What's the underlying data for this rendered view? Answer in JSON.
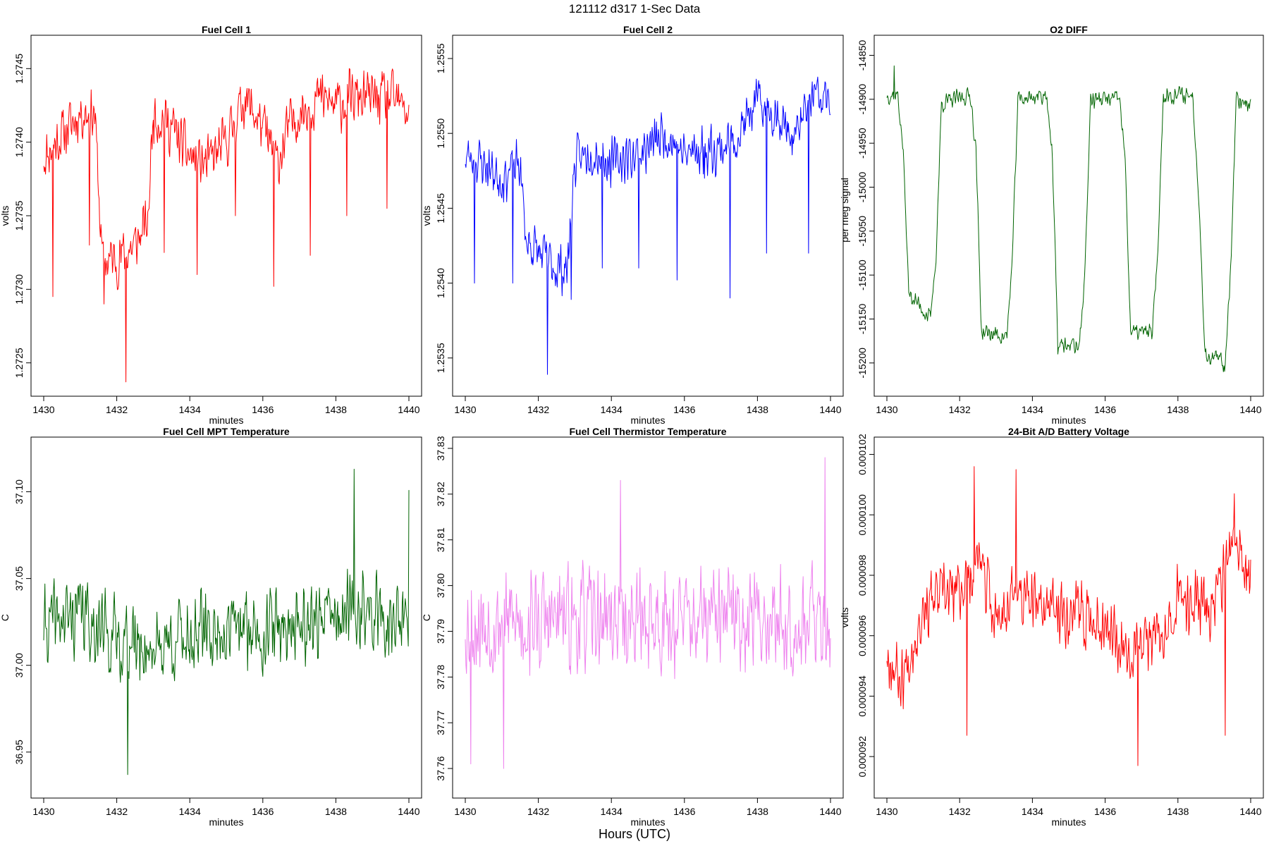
{
  "figure": {
    "title": "121112   d317   1-Sec Data",
    "xlabel": "Hours (UTC)"
  },
  "chart_data": [
    {
      "type": "line",
      "title": "Fuel Cell 1",
      "xlabel": "minutes",
      "ylabel": "volts",
      "color": "#ff0000",
      "xlim": [
        1430,
        1440
      ],
      "ylim": [
        1.27235,
        1.27465
      ],
      "xticks": [
        1430,
        1432,
        1434,
        1436,
        1438,
        1440
      ],
      "xtick_labels": [
        "1430",
        "1432",
        "1434",
        "1436",
        "1438",
        "1440"
      ],
      "yticks": [
        1.2725,
        1.273,
        1.2735,
        1.274,
        1.2745
      ],
      "ytick_labels": [
        "1.2725",
        "1.2730",
        "1.2735",
        "1.2740",
        "1.2745"
      ],
      "x": [
        1430,
        1430.5,
        1431,
        1431.4,
        1431.6,
        1432,
        1432.5,
        1432.85,
        1433,
        1433.5,
        1434,
        1434.5,
        1435,
        1435.5,
        1436,
        1436.4,
        1436.7,
        1437,
        1437.5,
        1438,
        1438.5,
        1439,
        1439.5,
        1440
      ],
      "values": [
        1.2739,
        1.27405,
        1.2742,
        1.2742,
        1.2732,
        1.2732,
        1.2733,
        1.27345,
        1.2742,
        1.2741,
        1.2739,
        1.27385,
        1.274,
        1.2743,
        1.2741,
        1.27385,
        1.2741,
        1.2742,
        1.2743,
        1.27425,
        1.2743,
        1.2743,
        1.2743,
        1.2742
      ],
      "noise": 0.00022,
      "spikes": [
        [
          1430.25,
          1.27295
        ],
        [
          1431.25,
          1.2733
        ],
        [
          1431.65,
          1.2729
        ],
        [
          1432.25,
          1.27237
        ],
        [
          1433.3,
          1.27325
        ],
        [
          1434.2,
          1.2731
        ],
        [
          1435.25,
          1.2735
        ],
        [
          1436.3,
          1.27302
        ],
        [
          1437.3,
          1.27323
        ],
        [
          1438.3,
          1.2735
        ],
        [
          1439.4,
          1.27355
        ]
      ],
      "seed": 11
    },
    {
      "type": "line",
      "title": "Fuel Cell 2",
      "xlabel": "minutes",
      "ylabel": "volts",
      "color": "#0000ff",
      "xlim": [
        1430,
        1440
      ],
      "ylim": [
        1.25332,
        1.25558
      ],
      "xticks": [
        1430,
        1432,
        1434,
        1436,
        1438,
        1440
      ],
      "xtick_labels": [
        "1430",
        "1432",
        "1434",
        "1436",
        "1438",
        "1440"
      ],
      "yticks": [
        1.2535,
        1.254,
        1.2545,
        1.255,
        1.2555
      ],
      "ytick_labels": [
        "1.2535",
        "1.2540",
        "1.2545",
        "1.2550",
        "1.2555"
      ],
      "x": [
        1430,
        1430.5,
        1431,
        1431.5,
        1431.65,
        1432,
        1432.5,
        1432.8,
        1433,
        1433.5,
        1434,
        1434.5,
        1435,
        1435.5,
        1436,
        1436.5,
        1437,
        1437.5,
        1438,
        1438.5,
        1439,
        1439.5,
        1440
      ],
      "values": [
        1.25485,
        1.2548,
        1.2547,
        1.2548,
        1.2543,
        1.2542,
        1.2541,
        1.2541,
        1.2548,
        1.2549,
        1.2548,
        1.25485,
        1.2549,
        1.255,
        1.25485,
        1.2549,
        1.2549,
        1.255,
        1.2552,
        1.25515,
        1.25495,
        1.25525,
        1.2552
      ],
      "noise": 0.0002,
      "spikes": [
        [
          1430.25,
          1.254
        ],
        [
          1431.3,
          1.254
        ],
        [
          1432.25,
          1.25339
        ],
        [
          1432.9,
          1.25389
        ],
        [
          1433.75,
          1.2541
        ],
        [
          1434.75,
          1.2541
        ],
        [
          1435.8,
          1.25402
        ],
        [
          1436.55,
          1.2547
        ],
        [
          1437.25,
          1.2539
        ],
        [
          1438.25,
          1.2542
        ],
        [
          1439.4,
          1.2542
        ]
      ],
      "seed": 23
    },
    {
      "type": "line",
      "title": "O2 DIFF",
      "xlabel": "minutes",
      "ylabel": "per meg signal",
      "color": "#006400",
      "xlim": [
        1430,
        1440
      ],
      "ylim": [
        -15225,
        -14840
      ],
      "xticks": [
        1430,
        1432,
        1434,
        1436,
        1438,
        1440
      ],
      "xtick_labels": [
        "1430",
        "1432",
        "1434",
        "1436",
        "1438",
        "1440"
      ],
      "yticks": [
        -15200,
        -15150,
        -15100,
        -15050,
        -15000,
        -14950,
        -14900,
        -14850
      ],
      "ytick_labels": [
        "-15200",
        "-15150",
        "-15100",
        "-15050",
        "-15000",
        "-14950",
        "-14900",
        "-14850"
      ],
      "x": [
        1430,
        1430.3,
        1430.45,
        1430.6,
        1431.2,
        1431.35,
        1431.5,
        1432.3,
        1432.45,
        1432.6,
        1433.3,
        1433.45,
        1433.6,
        1434.4,
        1434.55,
        1434.7,
        1435.3,
        1435.45,
        1435.6,
        1436.4,
        1436.55,
        1436.7,
        1437.3,
        1437.45,
        1437.6,
        1438.4,
        1438.55,
        1438.75,
        1439.3,
        1439.45,
        1439.6,
        1440
      ],
      "values": [
        -14895,
        -14895,
        -14960,
        -15120,
        -15150,
        -15080,
        -14905,
        -14895,
        -14960,
        -15165,
        -15170,
        -15080,
        -14900,
        -14895,
        -14970,
        -15180,
        -15180,
        -15090,
        -14900,
        -14900,
        -14970,
        -15165,
        -15165,
        -15070,
        -14895,
        -14895,
        -14990,
        -15190,
        -15200,
        -15090,
        -14900,
        -14905
      ],
      "noise": 12,
      "spikes": [
        [
          1430.2,
          -14862
        ],
        [
          1439.25,
          -15210
        ]
      ],
      "seed": 37
    },
    {
      "type": "line",
      "title": "Fuel Cell MPT Temperature",
      "xlabel": "minutes",
      "ylabel": "C",
      "color": "#006400",
      "xlim": [
        1430,
        1440
      ],
      "ylim": [
        36.93,
        37.125
      ],
      "xticks": [
        1430,
        1432,
        1434,
        1436,
        1438,
        1440
      ],
      "xtick_labels": [
        "1430",
        "1432",
        "1434",
        "1436",
        "1438",
        "1440"
      ],
      "yticks": [
        36.95,
        37.0,
        37.05,
        37.1
      ],
      "ytick_labels": [
        "36.95",
        "37.00",
        "37.05",
        "37.10"
      ],
      "x": [
        1430,
        1431,
        1432,
        1433,
        1434,
        1435,
        1436,
        1437,
        1438,
        1439,
        1440
      ],
      "values": [
        37.022,
        37.03,
        37.015,
        37.01,
        37.018,
        37.02,
        37.02,
        37.025,
        37.028,
        37.03,
        37.022
      ],
      "noise": 0.028,
      "spikes": [
        [
          1432.3,
          36.937
        ],
        [
          1438.5,
          37.113
        ],
        [
          1440,
          37.101
        ]
      ],
      "seed": 41
    },
    {
      "type": "line",
      "title": "Fuel Cell Thermistor Temperature",
      "xlabel": "minutes",
      "ylabel": "C",
      "color": "#ee82ee",
      "xlim": [
        1430,
        1440
      ],
      "ylim": [
        37.756,
        37.83
      ],
      "xticks": [
        1430,
        1432,
        1434,
        1436,
        1438,
        1440
      ],
      "xtick_labels": [
        "1430",
        "1432",
        "1434",
        "1436",
        "1438",
        "1440"
      ],
      "yticks": [
        37.76,
        37.77,
        37.78,
        37.79,
        37.8,
        37.81,
        37.82,
        37.83
      ],
      "ytick_labels": [
        "37.76",
        "37.77",
        "37.78",
        "37.79",
        "37.80",
        "37.81",
        "37.82",
        "37.83"
      ],
      "x": [
        1430,
        1432,
        1434,
        1436,
        1438,
        1440
      ],
      "values": [
        37.792,
        37.792,
        37.793,
        37.792,
        37.793,
        37.792
      ],
      "noise": 0.014,
      "spikes": [
        [
          1434.25,
          37.823
        ],
        [
          1439.85,
          37.828
        ],
        [
          1431.05,
          37.76
        ],
        [
          1430.15,
          37.761
        ]
      ],
      "seed": 53
    },
    {
      "type": "line",
      "title": "24-Bit A/D Battery Voltage",
      "xlabel": "minutes",
      "ylabel": "volts",
      "color": "#ff0000",
      "xlim": [
        1430,
        1440
      ],
      "ylim": [
        9.1e-05,
        0.0001022
      ],
      "xticks": [
        1430,
        1432,
        1434,
        1436,
        1438,
        1440
      ],
      "xtick_labels": [
        "1430",
        "1432",
        "1434",
        "1436",
        "1438",
        "1440"
      ],
      "yticks": [
        9.2e-05,
        9.4e-05,
        9.6e-05,
        9.8e-05,
        0.0001,
        0.000102
      ],
      "ytick_labels": [
        "0.000092",
        "0.000094",
        "0.000096",
        "0.000098",
        "0.000100",
        "0.000102"
      ],
      "x": [
        1430,
        1430.4,
        1431,
        1432,
        1432.5,
        1433,
        1433.5,
        1434,
        1435,
        1436,
        1436.5,
        1437,
        1437.5,
        1438,
        1439,
        1439.5,
        1440
      ],
      "values": [
        9.55e-05,
        9.45e-05,
        9.7e-05,
        9.75e-05,
        9.85e-05,
        9.65e-05,
        9.75e-05,
        9.7e-05,
        9.68e-05,
        9.65e-05,
        9.58e-05,
        9.55e-05,
        9.62e-05,
        9.72e-05,
        9.7e-05,
        9.9e-05,
        9.78e-05
      ],
      "noise": 1.3e-06,
      "spikes": [
        [
          1432.4,
          0.0001016
        ],
        [
          1433.55,
          0.0001015
        ],
        [
          1436.9,
          9.17e-05
        ],
        [
          1432.2,
          9.27e-05
        ],
        [
          1439.3,
          9.27e-05
        ],
        [
          1439.55,
          0.0001007
        ]
      ],
      "seed": 67
    }
  ]
}
